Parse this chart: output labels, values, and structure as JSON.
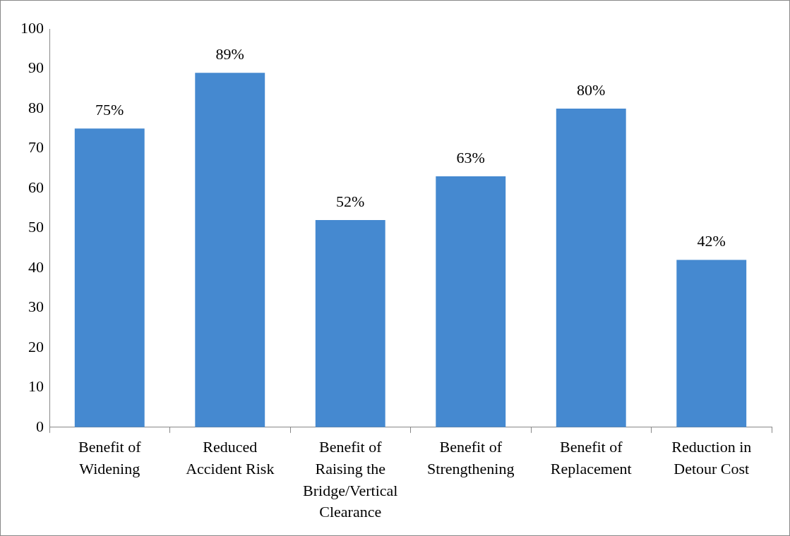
{
  "chart_data": {
    "type": "bar",
    "categories": [
      "Benefit of Widening",
      "Reduced Accident Risk",
      "Benefit of Raising the Bridge/Vertical Clearance",
      "Benefit of Strengthening",
      "Benefit of Replacement",
      "Reduction in Detour Cost"
    ],
    "values": [
      75,
      89,
      52,
      63,
      80,
      42
    ],
    "value_labels": [
      "75%",
      "89%",
      "52%",
      "63%",
      "80%",
      "42%"
    ],
    "color": "#4589d0",
    "ylim": [
      0,
      100
    ],
    "yticks": [
      0,
      10,
      20,
      30,
      40,
      50,
      60,
      70,
      80,
      90,
      100
    ],
    "grid": false,
    "legend": false
  }
}
